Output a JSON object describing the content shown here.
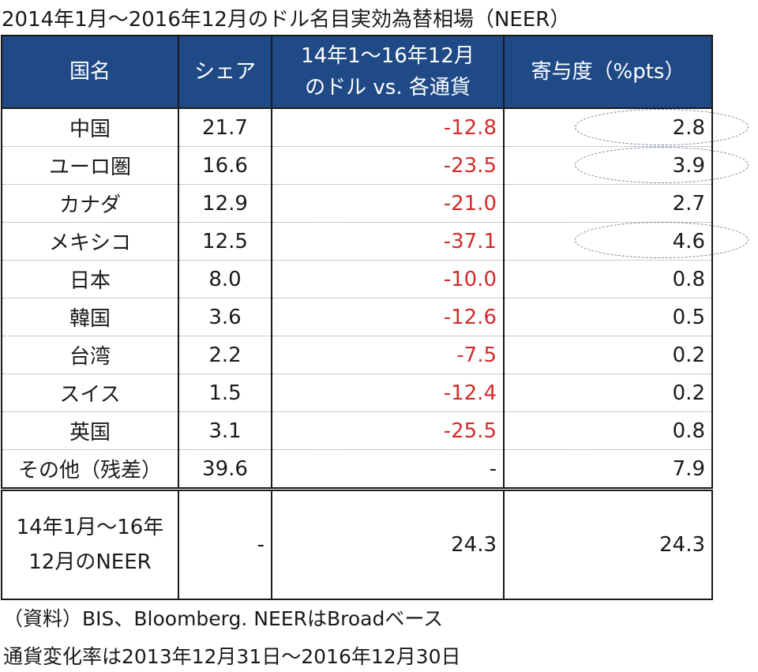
{
  "title": "2014年1月～2016年12月のドル名目実効為替相場（NEER）",
  "table": {
    "headers": [
      "国名",
      "シェア",
      "14年1～16年12月のドル vs. 各通貨",
      "寄与度（%pts）"
    ],
    "header_lines": {
      "name": "国名",
      "share": "シェア",
      "chg_line1": "14年1～16年12月",
      "chg_line2": "のドル vs. 各通貨",
      "contrib": "寄与度（%pts）"
    },
    "rows": [
      {
        "name": "中国",
        "share": "21.7",
        "change": "-12.8",
        "contribution": "2.8",
        "highlighted": true
      },
      {
        "name": "ユーロ圏",
        "share": "16.6",
        "change": "-23.5",
        "contribution": "3.9",
        "highlighted": true
      },
      {
        "name": "カナダ",
        "share": "12.9",
        "change": "-21.0",
        "contribution": "2.7",
        "highlighted": false
      },
      {
        "name": "メキシコ",
        "share": "12.5",
        "change": "-37.1",
        "contribution": "4.6",
        "highlighted": true
      },
      {
        "name": "日本",
        "share": "8.0",
        "change": "-10.0",
        "contribution": "0.8",
        "highlighted": false
      },
      {
        "name": "韓国",
        "share": "3.6",
        "change": "-12.6",
        "contribution": "0.5",
        "highlighted": false
      },
      {
        "name": "台湾",
        "share": "2.2",
        "change": "-7.5",
        "contribution": "0.2",
        "highlighted": false
      },
      {
        "name": "スイス",
        "share": "1.5",
        "change": "-12.4",
        "contribution": "0.2",
        "highlighted": false
      },
      {
        "name": "英国",
        "share": "3.1",
        "change": "-25.5",
        "contribution": "0.8",
        "highlighted": false
      },
      {
        "name": "その他（残差）",
        "share": "39.6",
        "change": "-",
        "contribution": "7.9",
        "highlighted": false
      }
    ],
    "total": {
      "name_line1": "14年1月～16年",
      "name_line2": "12月のNEER",
      "share": "-",
      "change": "24.3",
      "contribution": "24.3"
    }
  },
  "notes": {
    "source": "（資料）BIS、Bloomberg. NEERはBroadベース",
    "period": "通貨変化率は2013年12月31日～2016年12月30日"
  },
  "colors": {
    "header_bg": "#1f4a86",
    "negative_text": "#d42b2b",
    "highlight_oval": "#6a7d96"
  }
}
